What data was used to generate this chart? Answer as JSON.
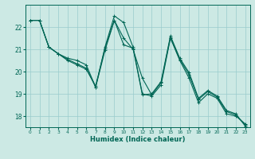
{
  "title": "",
  "xlabel": "Humidex (Indice chaleur)",
  "ylabel": "",
  "xlim": [
    -0.5,
    23.5
  ],
  "ylim": [
    17.5,
    23.0
  ],
  "yticks": [
    18,
    19,
    20,
    21,
    22
  ],
  "xticks": [
    0,
    1,
    2,
    3,
    4,
    5,
    6,
    7,
    8,
    9,
    10,
    11,
    12,
    13,
    14,
    15,
    16,
    17,
    18,
    19,
    20,
    21,
    22,
    23
  ],
  "bg_color": "#cce9e4",
  "grid_color": "#99cccc",
  "line_color": "#006655",
  "lines": [
    {
      "x": [
        0,
        1,
        2,
        3,
        4,
        5,
        6,
        7,
        8,
        9,
        10,
        11,
        12,
        13,
        14,
        15,
        16,
        17,
        18,
        19,
        20,
        21,
        22,
        23
      ],
      "y": [
        22.3,
        22.3,
        21.1,
        20.8,
        20.6,
        20.5,
        20.3,
        19.3,
        21.1,
        22.5,
        22.2,
        21.1,
        19.0,
        18.9,
        19.4,
        21.5,
        20.5,
        19.7,
        18.6,
        19.0,
        18.8,
        18.1,
        18.0,
        17.65
      ]
    },
    {
      "x": [
        0,
        1,
        2,
        3,
        4,
        5,
        6,
        7,
        8,
        9,
        10,
        11,
        12,
        13,
        14,
        15,
        16,
        17,
        18,
        19,
        20,
        21,
        22,
        23
      ],
      "y": [
        22.3,
        22.3,
        21.1,
        20.8,
        20.55,
        20.35,
        20.15,
        19.3,
        20.95,
        22.3,
        21.5,
        21.0,
        19.7,
        18.95,
        19.5,
        21.55,
        20.55,
        19.85,
        18.75,
        19.1,
        18.85,
        18.2,
        18.05,
        17.6
      ]
    },
    {
      "x": [
        0,
        1,
        2,
        3,
        4,
        5,
        6,
        7,
        8,
        9,
        10,
        11,
        12,
        13,
        14,
        15,
        16,
        17,
        18,
        19,
        20,
        21,
        22,
        23
      ],
      "y": [
        22.3,
        22.3,
        21.1,
        20.8,
        20.5,
        20.3,
        20.1,
        19.35,
        21.05,
        22.3,
        21.2,
        21.05,
        18.95,
        19.0,
        19.55,
        21.6,
        20.6,
        19.95,
        18.8,
        19.15,
        18.9,
        18.25,
        18.1,
        17.55
      ]
    }
  ]
}
